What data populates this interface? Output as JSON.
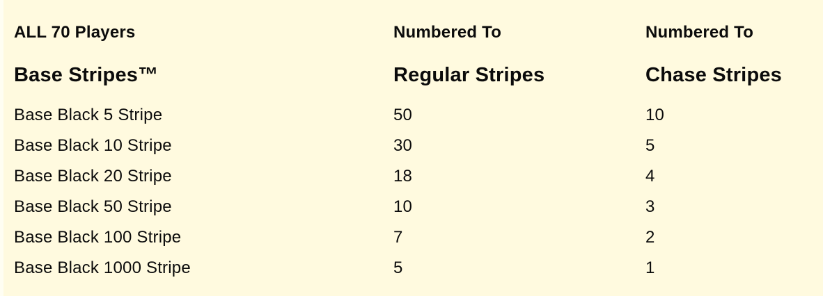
{
  "page": {
    "background_color": "#FFFADF",
    "text_color": "#0B0B0B"
  },
  "table": {
    "header": {
      "col1_line1": "ALL 70 Players",
      "col1_line2": "Base Stripes™",
      "col2_line1": "Numbered To",
      "col2_line2": "Regular Stripes",
      "col3_line1": "Numbered To",
      "col3_line2": "Chase Stripes"
    },
    "rows": [
      {
        "name": "Base Black 5 Stripe",
        "regular": "50",
        "chase": "10"
      },
      {
        "name": "Base Black 10 Stripe",
        "regular": "30",
        "chase": "5"
      },
      {
        "name": "Base Black 20 Stripe",
        "regular": "18",
        "chase": "4"
      },
      {
        "name": "Base Black 50 Stripe",
        "regular": "10",
        "chase": "3"
      },
      {
        "name": "Base Black 100 Stripe",
        "regular": "7",
        "chase": "2"
      },
      {
        "name": "Base Black 1000 Stripe",
        "regular": "5",
        "chase": "1"
      }
    ]
  },
  "chart_data": {
    "type": "table",
    "title": "ALL 70 Players Base Stripes™",
    "columns": [
      "Base Stripes™",
      "Numbered To Regular Stripes",
      "Numbered To Chase Stripes"
    ],
    "rows": [
      [
        "Base Black 5 Stripe",
        50,
        10
      ],
      [
        "Base Black 10 Stripe",
        30,
        5
      ],
      [
        "Base Black 20 Stripe",
        18,
        4
      ],
      [
        "Base Black 50 Stripe",
        10,
        3
      ],
      [
        "Base Black 100 Stripe",
        7,
        2
      ],
      [
        "Base Black 1000 Stripe",
        5,
        1
      ]
    ]
  }
}
